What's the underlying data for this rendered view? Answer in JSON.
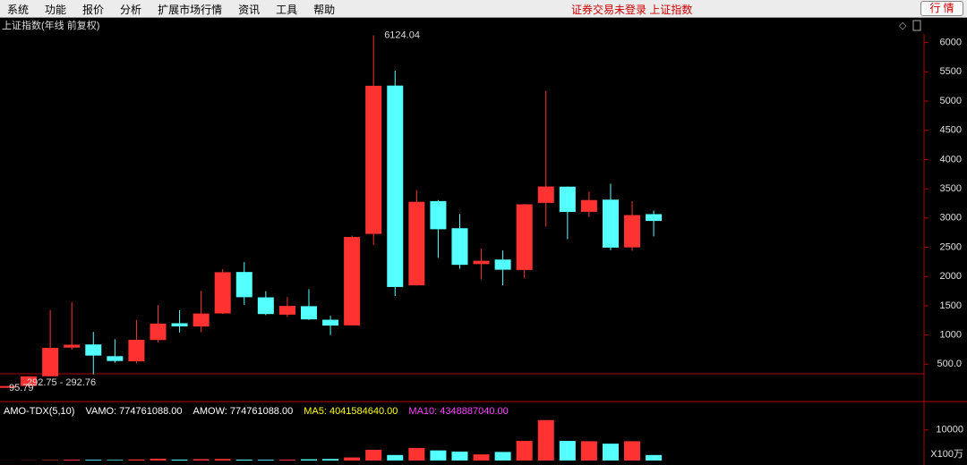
{
  "menu": {
    "items": [
      "系统",
      "功能",
      "报价",
      "分析",
      "扩展市场行情",
      "资讯",
      "工具",
      "帮助"
    ],
    "status": "证券交易未登录",
    "status_index": "上证指数",
    "button": "行 情"
  },
  "chart_data": [
    {
      "type": "candlestick",
      "title": "上证指数(年线 前复权)",
      "open": [
        96.05,
        127.61,
        293.74,
        784.13,
        837.7,
        637.72,
        550.26,
        914.06,
        1200.95,
        1144.89,
        1368.69,
        2077.08,
        1643.49,
        1347.43,
        1492.72,
        1260.78,
        1163.88,
        2728.19,
        5265,
        1849.02,
        3289.75,
        2825.33,
        2212,
        2289.51,
        2112.13,
        3258.63,
        3536.59,
        3105.31,
        3314.03,
        2497.88,
        3066.34
      ],
      "high": [
        127.61,
        292.75,
        1429.01,
        1558.95,
        1052.94,
        926.41,
        1258.69,
        1510.18,
        1422.98,
        1756.18,
        2125.72,
        2245.44,
        1748.89,
        1649.6,
        1783.01,
        1328.53,
        2698.9,
        6124.04,
        5522.78,
        3478.01,
        3306.75,
        3067.46,
        2478.38,
        2444.8,
        3239.36,
        5178.19,
        3538.69,
        3450.49,
        3587.03,
        3288.45,
        3127.17
      ],
      "low": [
        95.79,
        104.96,
        292.76,
        750.46,
        325.89,
        524.43,
        512.83,
        870.18,
        1043.02,
        1047.83,
        1361.21,
        1514.86,
        1339.2,
        1307.4,
        1259.43,
        998.23,
        1161.91,
        2541.52,
        1664.93,
        1844.09,
        2319.74,
        2134.02,
        1949.46,
        1849.65,
        1974.38,
        2850.71,
        2638.3,
        3016.53,
        2449.2,
        2440.91,
        2685
      ],
      "close": [
        127.61,
        292.75,
        780.39,
        833.8,
        647.87,
        555.29,
        917.01,
        1194.1,
        1146.7,
        1366.58,
        2073.48,
        1645.97,
        1357.65,
        1497.04,
        1266.5,
        1161.06,
        2675.47,
        5261.56,
        1820.81,
        3277.14,
        2808.08,
        2199.42,
        2269.13,
        2115.98,
        3234.68,
        3539.18,
        3103.64,
        3307.17,
        2493.9,
        3050.12,
        2950
      ],
      "up_color": "#ff3232",
      "down_color": "#54ffff",
      "ylim": [
        0,
        6300
      ],
      "yticks": [
        {
          "value": 500,
          "label": "500.0"
        },
        1000,
        1500,
        2000,
        2500,
        3000,
        3500,
        4000,
        4500,
        5000,
        5500,
        6000
      ],
      "annotations": [
        "6124.04",
        "95.79",
        "292.75 - 292.76"
      ]
    },
    {
      "type": "volume_bar",
      "indicator_labels": [
        "AMO-TDX(5,10)",
        "VAMO: 774761088.00",
        "AMOW: 774761088.00",
        "MA5: 4041584640.00",
        "MA10: 4348887040.00"
      ],
      "values": [
        20,
        60,
        150,
        300,
        250,
        200,
        350,
        600,
        300,
        450,
        500,
        300,
        250,
        300,
        400,
        500,
        1000,
        3500,
        1800,
        4100,
        3300,
        2900,
        2000,
        2800,
        6400,
        13200,
        6400,
        6300,
        5500,
        6300,
        1800
      ],
      "ylim": [
        0,
        14000
      ],
      "yticks": [
        10000
      ],
      "unit_label": "X100万"
    }
  ]
}
